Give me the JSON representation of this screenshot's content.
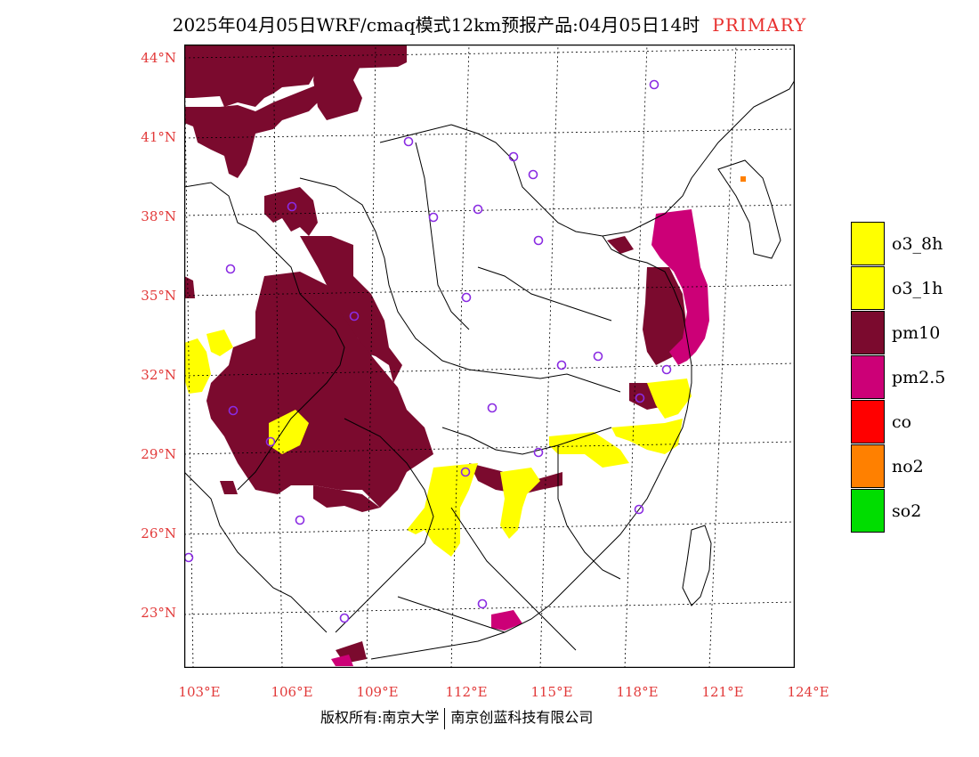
{
  "header": {
    "title": "2025年04月05日WRF/cmaq模式12km预报产品:04月05日14时",
    "primary_label": "PRIMARY",
    "primary_color": "#e8302e"
  },
  "axes": {
    "lat_labels": [
      "44°N",
      "41°N",
      "38°N",
      "35°N",
      "32°N",
      "29°N",
      "26°N",
      "23°N"
    ],
    "lon_labels": [
      "103°E",
      "106°E",
      "109°E",
      "112°E",
      "115°E",
      "118°E",
      "121°E",
      "124°E"
    ],
    "label_color": "#e23a3a"
  },
  "legend": {
    "items": [
      {
        "label": "o3_8h",
        "color": "#ffff00"
      },
      {
        "label": "o3_1h",
        "color": "#ffff00"
      },
      {
        "label": "pm10",
        "color": "#7b0a2e"
      },
      {
        "label": "pm2.5",
        "color": "#cc0077"
      },
      {
        "label": "co",
        "color": "#ff0000"
      },
      {
        "label": "no2",
        "color": "#ff8000"
      },
      {
        "label": "so2",
        "color": "#00dd00"
      }
    ]
  },
  "map": {
    "pollutant_colors": {
      "pm10": "#7b0a2e",
      "pm25": "#cc0077",
      "o3": "#ffff00",
      "no2": "#ff8000"
    },
    "station_marker_color": "#8a2be2",
    "station_count": 25
  },
  "footer": {
    "left": "版权所有:南京大学",
    "right": "南京创蓝科技有限公司"
  }
}
